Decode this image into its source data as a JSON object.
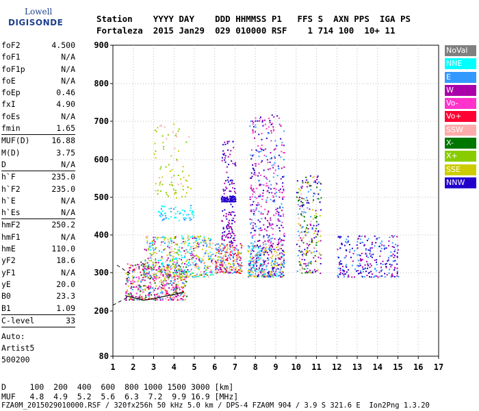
{
  "logo": {
    "line1": "Lowell",
    "line2": "DIGISONDE"
  },
  "header": {
    "line1": "Station    YYYY DAY    DDD HHMMSS P1   FFS S  AXN PPS  IGA PS",
    "line2": "Fortaleza  2015 Jan29  029 010000 RSF    1 714 100  10+ 11"
  },
  "params": [
    {
      "k": "foF2",
      "v": "4.500"
    },
    {
      "k": "foF1",
      "v": "N/A"
    },
    {
      "k": "foF1p",
      "v": "N/A"
    },
    {
      "k": "foE",
      "v": "N/A"
    },
    {
      "k": "foEp",
      "v": "0.46"
    },
    {
      "k": "fxI",
      "v": "4.90"
    },
    {
      "k": "foEs",
      "v": "N/A"
    },
    {
      "k": "fmin",
      "v": "1.65"
    },
    {
      "sep": true
    },
    {
      "k": "MUF(D)",
      "v": "16.88"
    },
    {
      "k": "M(D)",
      "v": "3.75"
    },
    {
      "k": "D",
      "v": "N/A"
    },
    {
      "sep": true
    },
    {
      "k": "h`F",
      "v": "235.0"
    },
    {
      "k": "h`F2",
      "v": "235.0"
    },
    {
      "k": "h`E",
      "v": "N/A"
    },
    {
      "k": "h`Es",
      "v": "N/A"
    },
    {
      "sep": true
    },
    {
      "k": "hmF2",
      "v": "250.2"
    },
    {
      "k": "hmF1",
      "v": "N/A"
    },
    {
      "k": "hmE",
      "v": "110.0"
    },
    {
      "k": "yF2",
      "v": "18.6"
    },
    {
      "k": "yF1",
      "v": "N/A"
    },
    {
      "k": "yE",
      "v": "20.0"
    },
    {
      "k": "B0",
      "v": "23.3"
    },
    {
      "k": "B1",
      "v": "1.09"
    },
    {
      "sep": true
    },
    {
      "k": "C-level",
      "v": "33"
    },
    {
      "sep": true
    }
  ],
  "auto": [
    "Auto:",
    "Artist5",
    "500200"
  ],
  "legend": [
    {
      "label": "NoVal",
      "color": "#808080"
    },
    {
      "label": "NNE",
      "color": "#00ffff"
    },
    {
      "label": "E",
      "color": "#3399ff"
    },
    {
      "label": "W",
      "color": "#aa00aa"
    },
    {
      "label": "Vo-",
      "color": "#ff33cc"
    },
    {
      "label": "Vo+",
      "color": "#ff0033"
    },
    {
      "label": "SSW",
      "color": "#ffaaaa"
    },
    {
      "label": "X-",
      "color": "#007700"
    },
    {
      "label": "X+",
      "color": "#88cc00"
    },
    {
      "label": "SSE",
      "color": "#cccc00"
    },
    {
      "label": "NNW",
      "color": "#2200cc"
    }
  ],
  "chart_data": {
    "type": "scatter",
    "xlim": [
      1,
      17
    ],
    "ylim": [
      80,
      900
    ],
    "x_ticks": [
      "1",
      "2",
      "3",
      "4",
      "5",
      "6",
      "7",
      "8",
      "9",
      "10",
      "11",
      "12",
      "13",
      "14",
      "15",
      "16",
      "17"
    ],
    "y_ticks": [
      "900",
      "800",
      "700",
      "600",
      "500",
      "400",
      "300",
      "200",
      "80"
    ],
    "y_tick_values": [
      900,
      800,
      700,
      600,
      500,
      400,
      300,
      200,
      80
    ],
    "trace_profile": [
      [
        1.6,
        240
      ],
      [
        2.0,
        235
      ],
      [
        2.5,
        228
      ],
      [
        3.0,
        232
      ],
      [
        3.5,
        238
      ],
      [
        4.0,
        243
      ],
      [
        4.5,
        250
      ]
    ],
    "clusters": [
      {
        "x": [
          1.6,
          4.6
        ],
        "y": [
          230,
          330
        ],
        "n": 500,
        "colors": [
          "#ff0033",
          "#aa00aa",
          "#cccc00",
          "#ff33cc",
          "#ffaaaa",
          "#007700",
          "#3399ff"
        ]
      },
      {
        "x": [
          2.5,
          5.9
        ],
        "y": [
          290,
          400
        ],
        "n": 500,
        "colors": [
          "#cccc00",
          "#88cc00",
          "#3399ff",
          "#00ffff",
          "#ffaaaa",
          "#aa00aa"
        ]
      },
      {
        "x": [
          3.0,
          4.8
        ],
        "y": [
          500,
          700
        ],
        "n": 80,
        "colors": [
          "#cccc00",
          "#ffaaaa",
          "#88cc00"
        ]
      },
      {
        "x": [
          3.2,
          5.0
        ],
        "y": [
          440,
          480
        ],
        "n": 60,
        "colors": [
          "#3399ff",
          "#00ffff"
        ]
      },
      {
        "x": [
          6.3,
          7.0
        ],
        "y": [
          380,
          650
        ],
        "n": 150,
        "colors": [
          "#2200cc",
          "#aa00aa"
        ]
      },
      {
        "x": [
          6.3,
          7.0
        ],
        "y": [
          490,
          505
        ],
        "n": 80,
        "colors": [
          "#2200cc"
        ]
      },
      {
        "x": [
          6.0,
          7.3
        ],
        "y": [
          300,
          380
        ],
        "n": 250,
        "colors": [
          "#ffaaaa",
          "#aa00aa",
          "#3399ff",
          "#cccc00",
          "#ff0033"
        ]
      },
      {
        "x": [
          7.7,
          9.4
        ],
        "y": [
          380,
          720
        ],
        "n": 350,
        "colors": [
          "#2200cc",
          "#aa00aa",
          "#3399ff",
          "#ff33cc"
        ]
      },
      {
        "x": [
          7.6,
          9.4
        ],
        "y": [
          290,
          380
        ],
        "n": 400,
        "colors": [
          "#ffaaaa",
          "#3399ff",
          "#cccc00",
          "#00ffff",
          "#aa00aa",
          "#2200cc"
        ]
      },
      {
        "x": [
          10.0,
          11.2
        ],
        "y": [
          300,
          560
        ],
        "n": 250,
        "colors": [
          "#ffaaaa",
          "#aa00aa",
          "#cccc00",
          "#2200cc",
          "#007700",
          "#3399ff"
        ]
      },
      {
        "x": [
          12.0,
          15.0
        ],
        "y": [
          290,
          400
        ],
        "n": 260,
        "colors": [
          "#2200cc",
          "#aa00aa",
          "#3399ff"
        ]
      }
    ]
  },
  "bottom": {
    "line1": "D     100  200  400  600  800 1000 1500 3000 [km]",
    "line2": "MUF   4.8  4.9  5.2  5.6  6.3  7.2  9.9 16.9 [MHz]",
    "line3": "FZA0M_2015029010000.RSF / 320fx256h 50 kHz 5.0 km / DPS-4 FZA0M 904 / 3.9 S 321.6 E  Ion2Png 1.3.20"
  }
}
